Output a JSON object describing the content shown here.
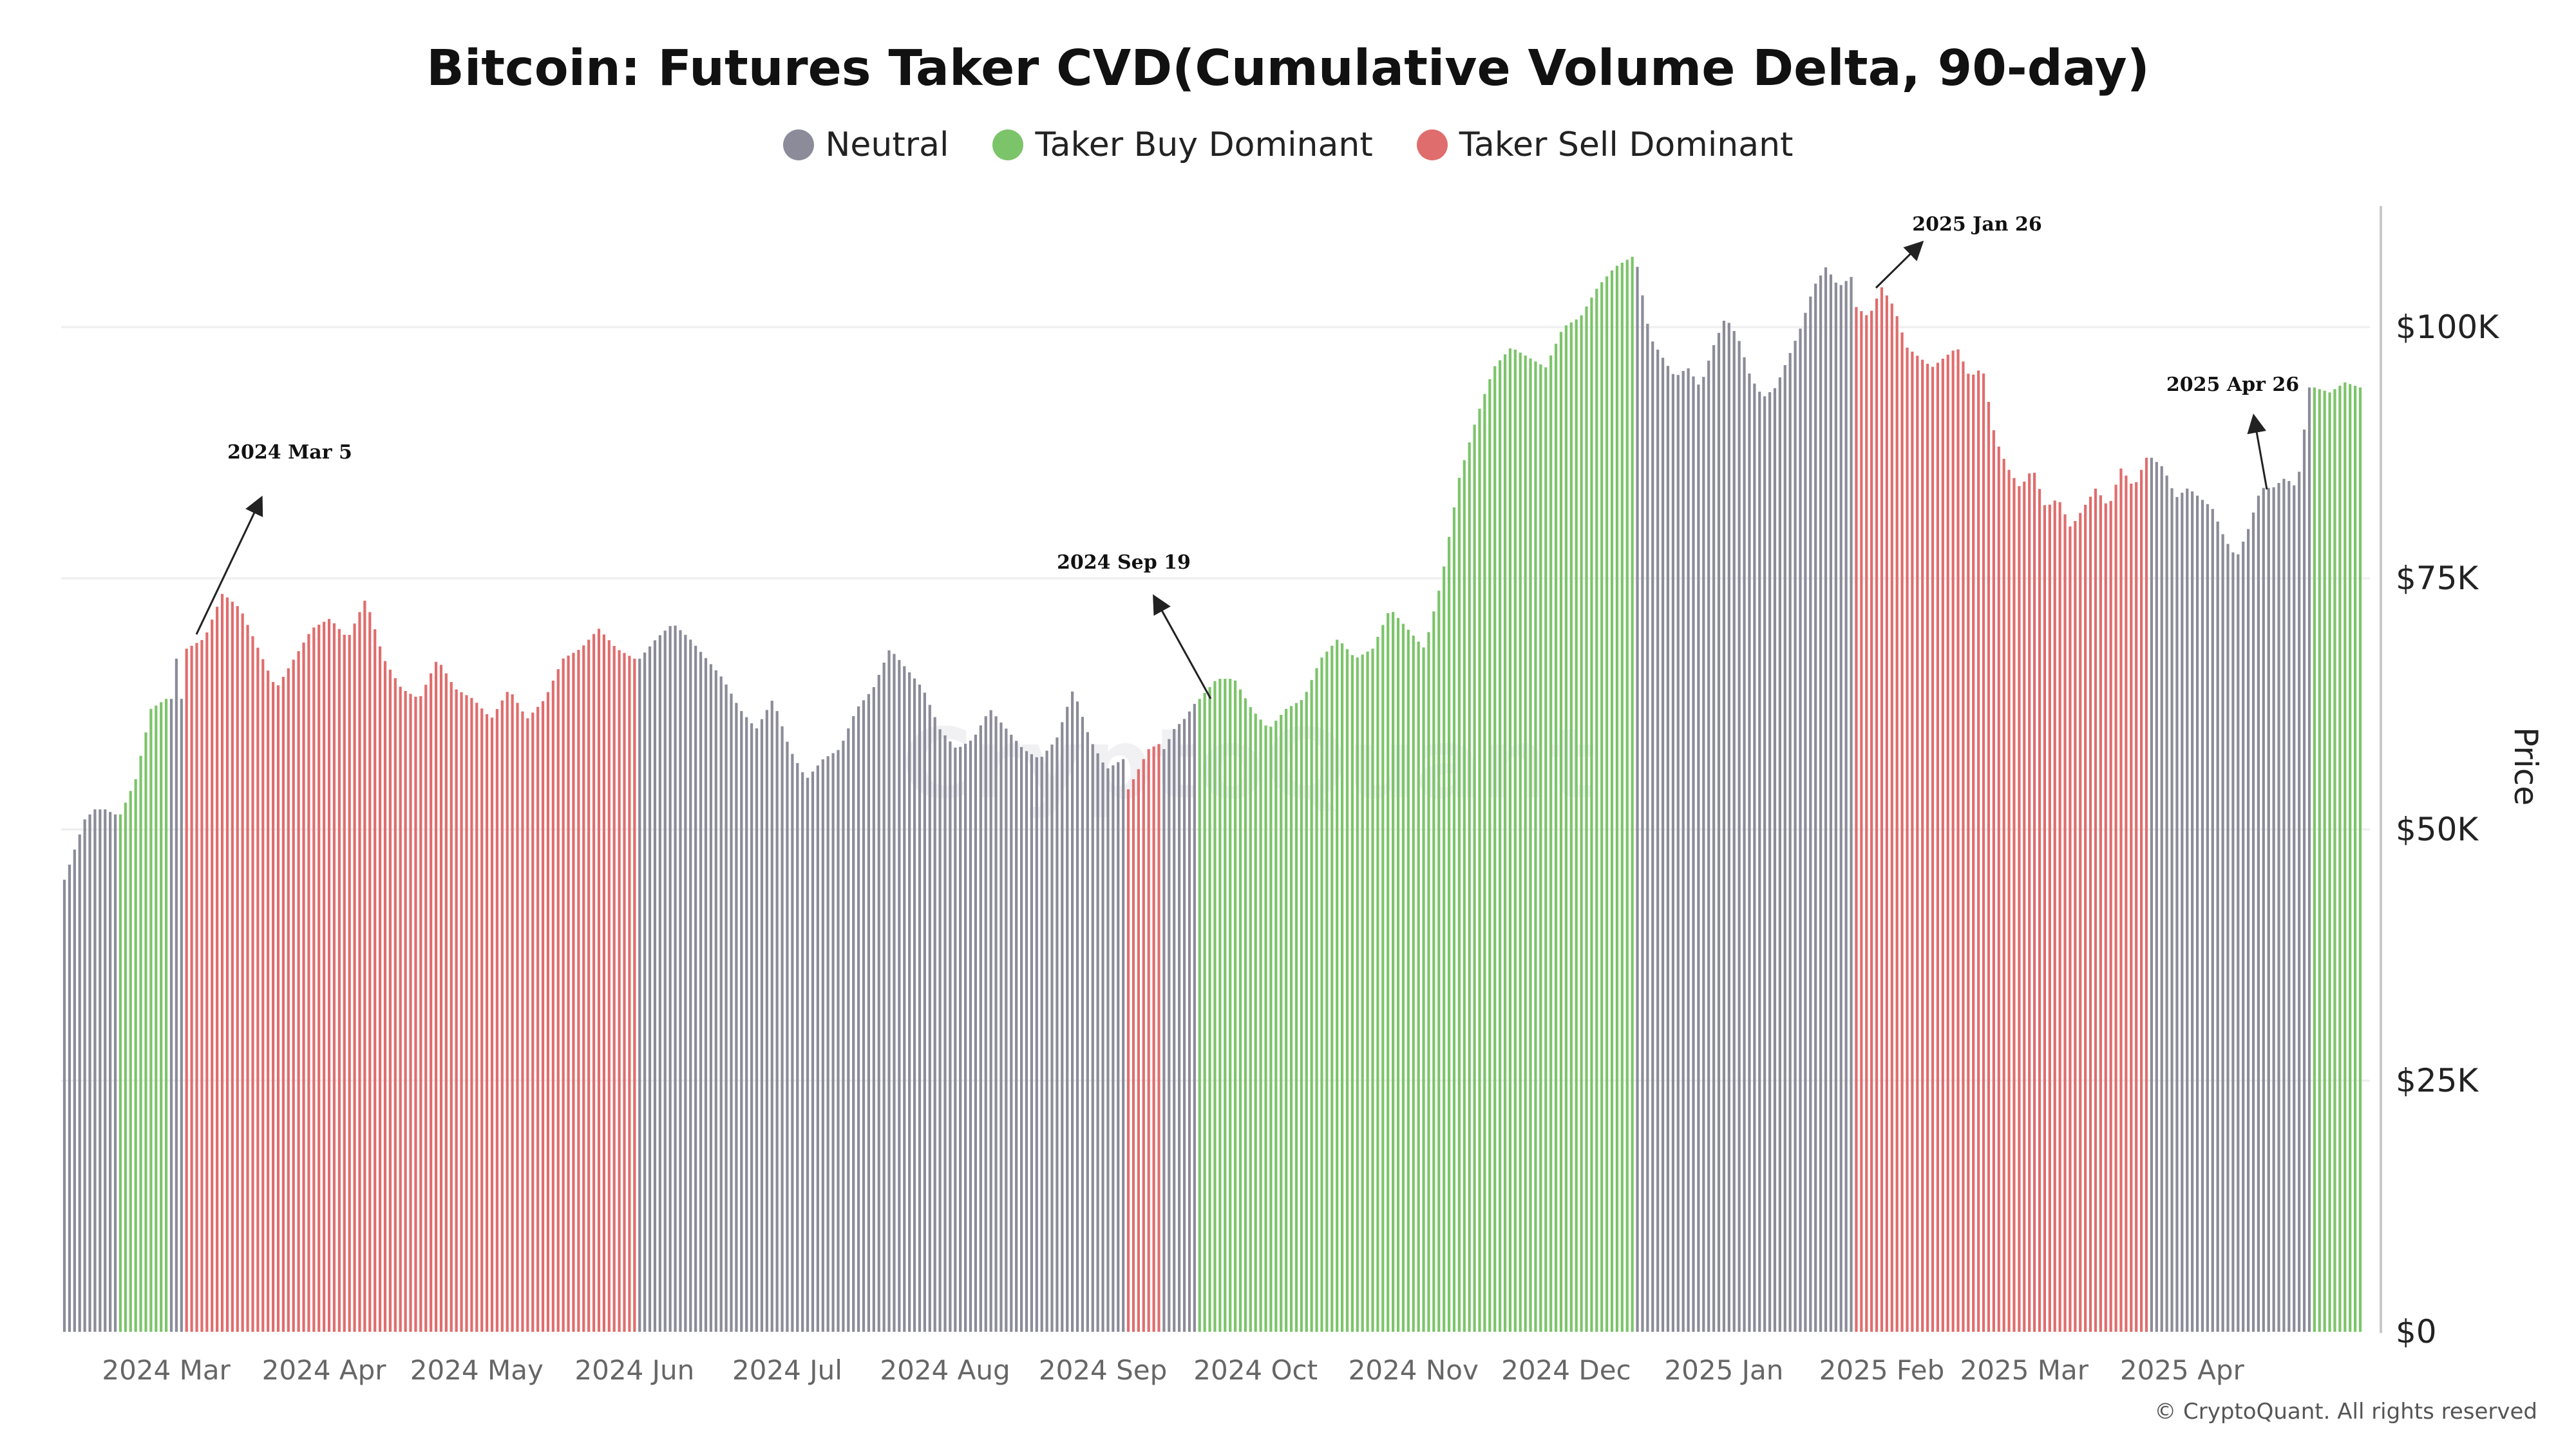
{
  "chart_data": {
    "type": "bar",
    "title": "Bitcoin: Futures Taker CVD(Cumulative Volume Delta, 90-day)",
    "ylabel": "Price",
    "ylim": [
      0,
      112000
    ],
    "y_ticks": [
      "$0",
      "$25K",
      "$50K",
      "$75K",
      "$100K"
    ],
    "x_ticks": [
      "2024 Mar",
      "2024 Apr",
      "2024 May",
      "2024 Jun",
      "2024 Jul",
      "2024 Aug",
      "2024 Sep",
      "2024 Oct",
      "2024 Nov",
      "2024 Dec",
      "2025 Jan",
      "2025 Feb",
      "2025 Mar",
      "2025 Apr"
    ],
    "legend": [
      {
        "name": "Neutral",
        "color": "#8b8b99"
      },
      {
        "name": "Taker Buy Dominant",
        "color": "#7cc46a"
      },
      {
        "name": "Taker Sell Dominant",
        "color": "#e06d6d"
      }
    ],
    "legend_position": "top-center",
    "grid": true,
    "segments": [
      {
        "start": "2024-02-10",
        "end": "2024-02-20",
        "points": [
          [
            45000,
            48000
          ],
          [
            51000,
            52000
          ],
          [
            52000,
            51500
          ]
        ],
        "regime": "neutral"
      },
      {
        "start": "2024-02-21",
        "end": "2024-03-01",
        "points": [
          [
            51500,
            55000
          ],
          [
            62000,
            63000
          ]
        ],
        "regime": "buy"
      },
      {
        "start": "2024-03-02",
        "end": "2024-03-04",
        "points": [
          [
            63000,
            67000
          ],
          [
            67000,
            63000
          ]
        ],
        "regime": "neutral"
      },
      {
        "start": "2024-03-05",
        "end": "2024-06-01",
        "points": [
          [
            68000,
            69000
          ],
          [
            73500,
            72000
          ],
          [
            68000,
            64000
          ],
          [
            67000,
            70000
          ],
          [
            71000,
            69000
          ],
          [
            73000,
            67000
          ],
          [
            64000,
            63000
          ],
          [
            67000,
            64000
          ],
          [
            63000,
            61000
          ],
          [
            64000,
            61000
          ],
          [
            63000,
            67000
          ],
          [
            68000,
            70000
          ],
          [
            68000,
            67000
          ]
        ],
        "regime": "sell"
      },
      {
        "start": "2024-06-02",
        "end": "2024-09-05",
        "points": [
          [
            67000,
            69000
          ],
          [
            70500,
            69000
          ],
          [
            67000,
            65000
          ],
          [
            62000,
            60000
          ],
          [
            63000,
            58000
          ],
          [
            55000,
            57000
          ],
          [
            58000,
            62000
          ],
          [
            64000,
            68000
          ],
          [
            66000,
            64000
          ],
          [
            60000,
            58000
          ],
          [
            59000,
            62000
          ],
          [
            60000,
            58000
          ],
          [
            57000,
            59000
          ],
          [
            64000,
            59000
          ],
          [
            56000,
            57000
          ]
        ],
        "regime": "neutral"
      },
      {
        "start": "2024-09-06",
        "end": "2024-09-12",
        "points": [
          [
            54000,
            56000
          ],
          [
            58000,
            58500
          ]
        ],
        "regime": "sell"
      },
      {
        "start": "2024-09-13",
        "end": "2024-09-19",
        "points": [
          [
            58000,
            60000
          ],
          [
            61000,
            62500
          ]
        ],
        "regime": "neutral"
      },
      {
        "start": "2024-09-20",
        "end": "2024-12-14",
        "points": [
          [
            63000,
            65000
          ],
          [
            65000,
            62000
          ],
          [
            60000,
            62000
          ],
          [
            63000,
            67000
          ],
          [
            69000,
            67000
          ],
          [
            68000,
            72000
          ],
          [
            70000,
            68000
          ],
          [
            75000,
            85000
          ],
          [
            91000,
            96000
          ],
          [
            98000,
            97000
          ],
          [
            96000,
            100000
          ],
          [
            101000,
            104000
          ],
          [
            106000,
            107000
          ]
        ],
        "regime": "buy"
      },
      {
        "start": "2024-12-15",
        "end": "2025-01-26",
        "points": [
          [
            106000,
            99000
          ],
          [
            97000,
            95000
          ],
          [
            96000,
            94000
          ],
          [
            98000,
            101000
          ],
          [
            99000,
            95000
          ],
          [
            93000,
            94000
          ],
          [
            97000,
            100000
          ],
          [
            104000,
            106000
          ],
          [
            104000,
            105000
          ]
        ],
        "regime": "neutral"
      },
      {
        "start": "2025-01-27",
        "end": "2025-03-25",
        "points": [
          [
            102000,
            101000
          ],
          [
            104000,
            102000
          ],
          [
            98000,
            97000
          ],
          [
            96000,
            97000
          ],
          [
            98000,
            95000
          ],
          [
            96000,
            89000
          ],
          [
            86000,
            84000
          ],
          [
            86000,
            82000
          ],
          [
            83000,
            80000
          ],
          [
            82000,
            84000
          ],
          [
            82000,
            86000
          ],
          [
            84000,
            87000
          ]
        ],
        "regime": "sell"
      },
      {
        "start": "2025-03-26",
        "end": "2025-04-26",
        "points": [
          [
            87000,
            86000
          ],
          [
            83000,
            84000
          ],
          [
            83000,
            82000
          ],
          [
            79000,
            77000
          ],
          [
            80000,
            84000
          ],
          [
            84000,
            85000
          ],
          [
            84000,
            94000
          ]
        ],
        "regime": "neutral"
      },
      {
        "start": "2025-04-27",
        "end": "2025-05-06",
        "points": [
          [
            94000,
            93500
          ],
          [
            94500,
            94000
          ]
        ],
        "regime": "buy"
      }
    ],
    "annotations": [
      {
        "label": "2024 Mar 5"
      },
      {
        "label": "2024 Sep 19"
      },
      {
        "label": "2025 Jan 26"
      },
      {
        "label": "2025 Apr 26"
      }
    ],
    "watermark": "CryptoQuant",
    "copyright": "© CryptoQuant. All rights reserved"
  }
}
